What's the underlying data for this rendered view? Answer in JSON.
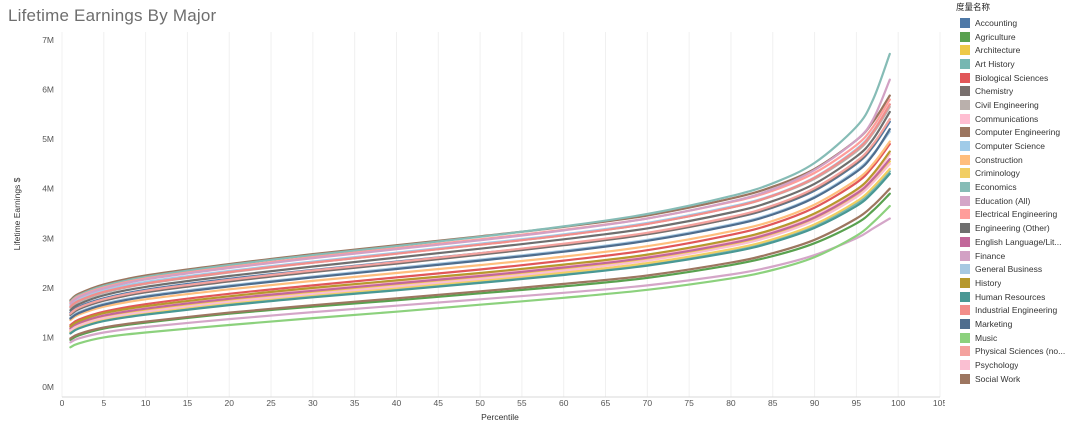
{
  "chart_data": {
    "type": "line",
    "title": "Lifetime Earnings By Major",
    "xlabel": "Percentile",
    "ylabel": "Lifetime Earnings $",
    "xlim": [
      0,
      105
    ],
    "ylim": [
      0,
      7000000
    ],
    "xticks": [
      "0",
      "5",
      "10",
      "15",
      "20",
      "25",
      "30",
      "35",
      "40",
      "45",
      "50",
      "55",
      "60",
      "65",
      "70",
      "75",
      "80",
      "85",
      "90",
      "95",
      "100",
      "105"
    ],
    "yticks": [
      "0M",
      "1M",
      "2M",
      "3M",
      "4M",
      "5M",
      "6M",
      "7M"
    ],
    "grid": true,
    "legend_position": "right",
    "legend_title": "度量名称",
    "x": [
      1,
      2,
      5,
      10,
      20,
      30,
      40,
      50,
      60,
      70,
      80,
      85,
      90,
      95,
      97,
      99
    ],
    "series": [
      {
        "name": "Accounting",
        "color": "#4e79a7",
        "values": [
          1.5,
          1.62,
          1.79,
          1.96,
          2.18,
          2.36,
          2.53,
          2.7,
          2.88,
          3.1,
          3.4,
          3.62,
          3.96,
          4.5,
          4.85,
          5.35
        ]
      },
      {
        "name": "Agriculture",
        "color": "#59a14f",
        "values": [
          0.95,
          1.04,
          1.18,
          1.3,
          1.48,
          1.62,
          1.75,
          1.89,
          2.03,
          2.2,
          2.46,
          2.64,
          2.9,
          3.3,
          3.56,
          3.9
        ]
      },
      {
        "name": "Architecture",
        "color": "#edc948",
        "values": [
          1.15,
          1.26,
          1.41,
          1.55,
          1.75,
          1.91,
          2.06,
          2.21,
          2.38,
          2.58,
          2.87,
          3.07,
          3.38,
          3.85,
          4.15,
          4.55
        ]
      },
      {
        "name": "Art History",
        "color": "#76b7b2",
        "values": [
          1.1,
          1.2,
          1.35,
          1.48,
          1.68,
          1.84,
          1.98,
          2.13,
          2.29,
          2.48,
          2.76,
          2.96,
          3.25,
          3.7,
          3.98,
          4.35
        ]
      },
      {
        "name": "Biological Sciences",
        "color": "#e15759",
        "values": [
          1.25,
          1.36,
          1.52,
          1.67,
          1.88,
          2.05,
          2.21,
          2.37,
          2.55,
          2.76,
          3.07,
          3.29,
          3.62,
          4.12,
          4.45,
          4.9
        ]
      },
      {
        "name": "Chemistry",
        "color": "#79706e",
        "values": [
          1.45,
          1.57,
          1.74,
          1.91,
          2.13,
          2.32,
          2.49,
          2.67,
          2.86,
          3.08,
          3.4,
          3.63,
          3.98,
          4.52,
          4.88,
          5.4
        ]
      },
      {
        "name": "Civil Engineering",
        "color": "#bab0ac",
        "values": [
          1.6,
          1.72,
          1.9,
          2.08,
          2.31,
          2.51,
          2.69,
          2.87,
          3.06,
          3.29,
          3.62,
          3.85,
          4.2,
          4.75,
          5.12,
          5.65
        ]
      },
      {
        "name": "Communications",
        "color": "#ffbed2",
        "values": [
          1.2,
          1.31,
          1.47,
          1.61,
          1.81,
          1.97,
          2.12,
          2.27,
          2.44,
          2.64,
          2.93,
          3.14,
          3.45,
          3.93,
          4.24,
          4.7
        ]
      },
      {
        "name": "Computer Engineering",
        "color": "#9c755f",
        "values": [
          1.75,
          1.88,
          2.07,
          2.25,
          2.48,
          2.68,
          2.86,
          3.04,
          3.23,
          3.46,
          3.8,
          4.04,
          4.4,
          4.98,
          5.35,
          5.88
        ]
      },
      {
        "name": "Computer Science",
        "color": "#a0cbe8",
        "values": [
          1.65,
          1.77,
          1.95,
          2.12,
          2.34,
          2.53,
          2.71,
          2.89,
          3.08,
          3.31,
          3.64,
          3.87,
          4.23,
          4.8,
          5.16,
          5.7
        ]
      },
      {
        "name": "Construction",
        "color": "#ffbe7d",
        "values": [
          1.35,
          1.46,
          1.62,
          1.77,
          1.97,
          2.14,
          2.3,
          2.46,
          2.63,
          2.84,
          3.14,
          3.35,
          3.68,
          4.18,
          4.5,
          4.95
        ]
      },
      {
        "name": "Criminology",
        "color": "#f1ce63",
        "values": [
          1.12,
          1.22,
          1.37,
          1.5,
          1.7,
          1.86,
          2.0,
          2.15,
          2.31,
          2.5,
          2.78,
          2.98,
          3.28,
          3.74,
          4.03,
          4.4
        ]
      },
      {
        "name": "Economics",
        "color": "#86bcb6",
        "values": [
          1.72,
          1.85,
          2.04,
          2.22,
          2.46,
          2.66,
          2.84,
          3.03,
          3.24,
          3.49,
          3.85,
          4.11,
          4.52,
          5.25,
          5.8,
          6.72
        ]
      },
      {
        "name": "Education (All)",
        "color": "#d4a6c8",
        "values": [
          0.9,
          0.98,
          1.1,
          1.21,
          1.37,
          1.51,
          1.64,
          1.77,
          1.9,
          2.05,
          2.27,
          2.43,
          2.66,
          3.0,
          3.2,
          3.4
        ]
      },
      {
        "name": "Electrical Engineering",
        "color": "#ff9d9a",
        "values": [
          1.7,
          1.83,
          2.01,
          2.19,
          2.42,
          2.62,
          2.8,
          2.98,
          3.17,
          3.4,
          3.73,
          3.96,
          4.32,
          4.88,
          5.25,
          5.8
        ]
      },
      {
        "name": "Engineering (Other)",
        "color": "#6f6f6f",
        "values": [
          1.55,
          1.67,
          1.85,
          2.02,
          2.24,
          2.43,
          2.61,
          2.79,
          2.98,
          3.2,
          3.52,
          3.75,
          4.1,
          4.65,
          5.0,
          5.55
        ]
      },
      {
        "name": "English Language/Lit...",
        "color": "#c2679a",
        "values": [
          1.18,
          1.29,
          1.44,
          1.58,
          1.78,
          1.94,
          2.09,
          2.24,
          2.41,
          2.61,
          2.9,
          3.11,
          3.42,
          3.9,
          4.2,
          4.6
        ]
      },
      {
        "name": "Finance",
        "color": "#d2a1c4",
        "values": [
          1.68,
          1.81,
          1.99,
          2.17,
          2.4,
          2.6,
          2.78,
          2.96,
          3.16,
          3.4,
          3.74,
          3.99,
          4.38,
          4.98,
          5.4,
          6.2
        ]
      },
      {
        "name": "General Business",
        "color": "#a7c9e2",
        "values": [
          1.4,
          1.51,
          1.68,
          1.84,
          2.05,
          2.23,
          2.4,
          2.57,
          2.75,
          2.97,
          3.28,
          3.5,
          3.84,
          4.37,
          4.7,
          5.15
        ]
      },
      {
        "name": "History",
        "color": "#b6992d",
        "values": [
          1.22,
          1.33,
          1.49,
          1.63,
          1.83,
          2.0,
          2.15,
          2.3,
          2.47,
          2.67,
          2.97,
          3.18,
          3.5,
          3.98,
          4.3,
          4.75
        ]
      },
      {
        "name": "Human Resources",
        "color": "#499894",
        "values": [
          1.08,
          1.18,
          1.33,
          1.46,
          1.65,
          1.81,
          1.95,
          2.1,
          2.26,
          2.45,
          2.72,
          2.92,
          3.21,
          3.65,
          3.93,
          4.3
        ]
      },
      {
        "name": "Industrial Engineering",
        "color": "#f28e8b",
        "values": [
          1.62,
          1.74,
          1.92,
          2.09,
          2.32,
          2.51,
          2.69,
          2.87,
          3.06,
          3.29,
          3.62,
          3.86,
          4.22,
          4.78,
          5.15,
          5.7
        ]
      },
      {
        "name": "Marketing",
        "color": "#4e6d8e",
        "values": [
          1.38,
          1.49,
          1.66,
          1.82,
          2.03,
          2.21,
          2.38,
          2.55,
          2.73,
          2.95,
          3.26,
          3.48,
          3.82,
          4.34,
          4.68,
          5.2
        ]
      },
      {
        "name": "Music",
        "color": "#8cd17d",
        "values": [
          0.8,
          0.88,
          1.0,
          1.1,
          1.25,
          1.39,
          1.52,
          1.66,
          1.8,
          1.96,
          2.19,
          2.36,
          2.62,
          3.05,
          3.32,
          3.65
        ]
      },
      {
        "name": "Physical Sciences (no...",
        "color": "#f4a29e",
        "values": [
          1.48,
          1.6,
          1.77,
          1.94,
          2.16,
          2.35,
          2.52,
          2.7,
          2.89,
          3.11,
          3.43,
          3.66,
          4.01,
          4.55,
          4.9,
          5.4
        ]
      },
      {
        "name": "Psychology",
        "color": "#fabfd2",
        "values": [
          1.14,
          1.24,
          1.39,
          1.52,
          1.72,
          1.88,
          2.03,
          2.18,
          2.35,
          2.55,
          2.84,
          3.05,
          3.36,
          3.83,
          4.13,
          4.5
        ]
      },
      {
        "name": "Social Work",
        "color": "#9d7660",
        "values": [
          0.98,
          1.07,
          1.2,
          1.32,
          1.5,
          1.65,
          1.79,
          1.93,
          2.08,
          2.25,
          2.51,
          2.7,
          2.97,
          3.4,
          3.66,
          4.0
        ]
      }
    ]
  }
}
